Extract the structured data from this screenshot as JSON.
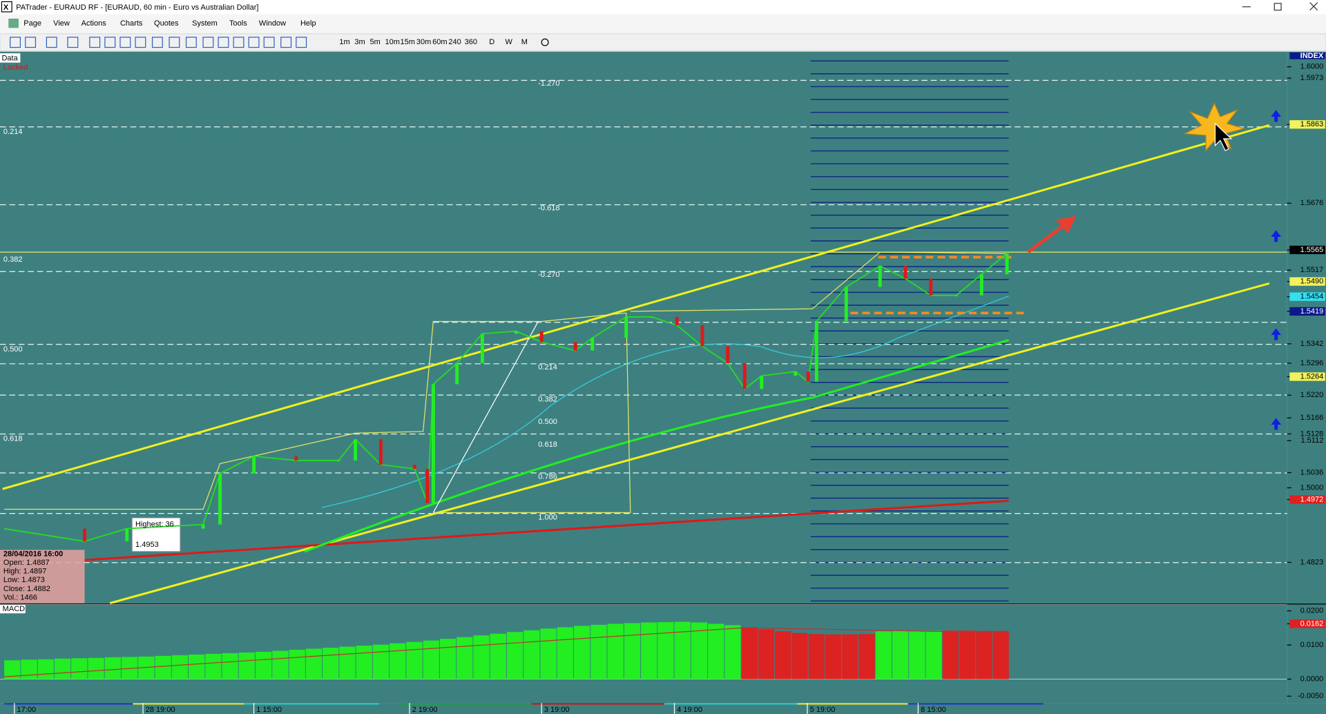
{
  "window": {
    "title": "PATrader - EURAUD RF - [EURAUD, 60 min - Euro vs Australian Dollar]"
  },
  "menu": [
    "Page",
    "View",
    "Actions",
    "Charts",
    "Quotes",
    "System",
    "Tools",
    "Window",
    "Help"
  ],
  "timeframes": [
    "1m",
    "3m",
    "5m",
    "10m",
    "15m",
    "30m",
    "60m",
    "240",
    "360",
    "D",
    "W",
    "M"
  ],
  "chart_data": {
    "type": "line",
    "panel_label": "Data",
    "status": "Locked",
    "axis_title": "INDEX",
    "color": "#22dd22",
    "values": [
      1.4903,
      1.4873,
      1.4903,
      1.4913,
      1.5034,
      1.5075,
      1.5065,
      1.5065,
      1.5115,
      1.5055,
      1.5045,
      1.4964,
      1.5246,
      1.5296,
      1.5366,
      1.5372,
      1.5346,
      1.5326,
      1.5356,
      1.5406,
      1.5406,
      1.5386,
      1.5336,
      1.5296,
      1.5235,
      1.5266,
      1.5276,
      1.5252,
      1.5396,
      1.5477,
      1.5527,
      1.5497,
      1.5457,
      1.5457,
      1.5507,
      1.5557
    ],
    "ylim": [
      1.4726,
      1.6036
    ],
    "yticks": [
      {
        "value": 1.6,
        "label": "1.6000"
      },
      1.5973,
      1.5863,
      1.5676,
      1.5565,
      1.5517,
      {
        "value": 1.549,
        "label": "1.5490"
      },
      1.5454,
      1.5419,
      1.5342,
      1.5296,
      1.5264,
      {
        "value": 1.522,
        "label": "1.5220"
      },
      1.5166,
      1.5128,
      1.5112,
      1.5036,
      {
        "value": 1.5,
        "label": "1.5000"
      },
      1.4972,
      1.4823
    ],
    "ytick_colors": [
      null,
      null,
      "#f2f25a",
      null,
      "#000000",
      null,
      "#f2f25a",
      "#33e0f0",
      "#0a1a8a",
      null,
      null,
      "#f2f25a",
      null,
      null,
      null,
      null,
      null,
      null,
      "#e02020",
      null
    ],
    "fib_left": [
      0.214,
      0.382,
      {
        "value": 0.5,
        "label": "0.500"
      },
      0.618
    ],
    "fib_mid": [
      {
        "value": -1.27,
        "label": "-1.270"
      },
      -0.618,
      {
        "value": -0.27,
        "label": "-0.270"
      },
      0.214,
      0.382,
      {
        "value": 0.5,
        "label": "0.500"
      },
      0.618,
      0.786,
      {
        "value": 1,
        "label": "1.000"
      }
    ],
    "time_labels": [
      "17:00",
      "28 19:00",
      "1 15:00",
      "2 19:00",
      "3 19:00",
      "4 19:00",
      "5 19:00",
      "8 15:00"
    ],
    "data_box": [
      "28/04/2016 16:00",
      "Open: 1.4887",
      "High: 1.4897",
      "Low: 1.4873",
      "Close: 1.4882",
      "Vol.: 1466"
    ],
    "tooltip": [
      "Highest: 36",
      "1.4953"
    ]
  },
  "macd": {
    "label": "MACD",
    "ylim": [
      -0.007,
      0.02175
    ],
    "yticks": [
      {
        "value": 0.02,
        "label": "0.0200"
      },
      0.0162,
      {
        "value": 0.01,
        "label": "0.0100"
      },
      {
        "value": 0,
        "label": "0.0000"
      },
      {
        "value": -0.005,
        "label": "-0.0050"
      }
    ],
    "ytick_colors": [
      null,
      "#e02020",
      null,
      null,
      null
    ],
    "values": [
      0.0055,
      0.0057,
      0.0058,
      0.006,
      0.0061,
      0.0062,
      0.0064,
      0.0065,
      0.0066,
      0.0068,
      0.007,
      0.0072,
      0.0074,
      0.0076,
      0.0078,
      0.008,
      0.0083,
      0.0086,
      0.0089,
      0.0092,
      0.0095,
      0.0098,
      0.0101,
      0.0105,
      0.0109,
      0.0113,
      0.0118,
      0.0123,
      0.0128,
      0.0133,
      0.0138,
      0.0143,
      0.0148,
      0.0152,
      0.0156,
      0.0159,
      0.0162,
      0.0164,
      0.0166,
      0.0167,
      0.0168,
      0.0166,
      0.0162,
      0.0158,
      0.0152,
      0.0146,
      0.014,
      0.0135,
      0.0132,
      0.0131,
      0.0131,
      0.0132,
      0.014,
      0.0141,
      0.0142,
      0.0142,
      0.0142,
      0.0142,
      0.0141,
      0.0141
    ],
    "colors": [
      "#22ee22",
      "#22ee22",
      "#22ee22",
      "#22ee22",
      "#22ee22",
      "#22ee22",
      "#22ee22",
      "#22ee22",
      "#22ee22",
      "#22ee22",
      "#22ee22",
      "#22ee22",
      "#22ee22",
      "#22ee22",
      "#22ee22",
      "#22ee22",
      "#22ee22",
      "#22ee22",
      "#22ee22",
      "#22ee22",
      "#22ee22",
      "#22ee22",
      "#22ee22",
      "#22ee22",
      "#22ee22",
      "#22ee22",
      "#22ee22",
      "#22ee22",
      "#22ee22",
      "#22ee22",
      "#22ee22",
      "#22ee22",
      "#22ee22",
      "#22ee22",
      "#22ee22",
      "#22ee22",
      "#22ee22",
      "#22ee22",
      "#22ee22",
      "#22ee22",
      "#22ee22",
      "#22ee22",
      "#22ee22",
      "#22ee22",
      "#dd2222",
      "#dd2222",
      "#dd2222",
      "#dd2222",
      "#dd2222",
      "#dd2222",
      "#dd2222",
      "#dd2222",
      "#22ee22",
      "#22ee22",
      "#22ee22",
      "#22ee22",
      "#dd2222",
      "#dd2222",
      "#dd2222",
      "#dd2222"
    ]
  }
}
